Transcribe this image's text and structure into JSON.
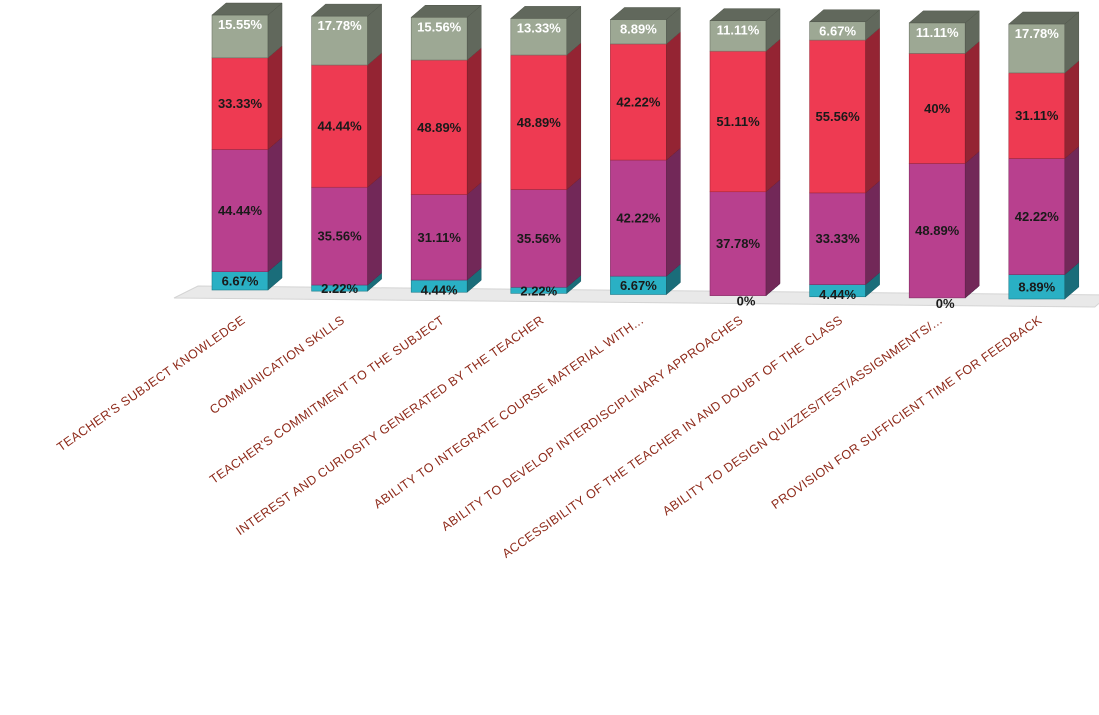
{
  "chart_data": {
    "type": "bar",
    "stacked": true,
    "style": "3d-percent-stacked-column",
    "title": "",
    "xlabel": "",
    "ylabel": "",
    "ylim": [
      0,
      100
    ],
    "grid": false,
    "legend": "none",
    "categories": [
      "TEACHER'S SUBJECT KNOWLEDGE",
      "COMMUNICATION SKILLS",
      "TEACHER'S COMMITMENT TO THE SUBJECT",
      "INTEREST AND CURIOSITY GENERATED BY THE TEACHER",
      "ABILITY TO INTEGRATE COURSE MATERIAL WITH...",
      "ABILITY TO DEVELOP INTERDISCIPLINARY APPROACHES",
      "ACCESSIBILITY OF THE TEACHER IN AND DOUBT OF THE CLASS",
      "ABILITY TO DESIGN QUIZZES/TEST/ASSIGNMENTS/...",
      "PROVISION FOR SUFFICIENT TIME FOR FEEDBACK"
    ],
    "series": [
      {
        "color": "#2ab0c4",
        "values": [
          6.67,
          2.22,
          4.44,
          2.22,
          6.67,
          0,
          4.44,
          0,
          8.89
        ],
        "labels": [
          "6.67%",
          "2.22%",
          "4.44%",
          "2.22%",
          "6.67%",
          "0%",
          "4.44%",
          "0%",
          "8.89%"
        ]
      },
      {
        "color": "#b8408e",
        "values": [
          44.44,
          35.56,
          31.11,
          35.56,
          42.22,
          37.78,
          33.33,
          48.89,
          42.22
        ],
        "labels": [
          "44.44%",
          "35.56%",
          "31.11%",
          "35.56%",
          "42.22%",
          "37.78%",
          "33.33%",
          "48.89%",
          "42.22%"
        ]
      },
      {
        "color": "#ee3a52",
        "values": [
          33.33,
          44.44,
          48.89,
          48.89,
          42.22,
          51.11,
          55.56,
          40,
          31.11
        ],
        "labels": [
          "33.33%",
          "44.44%",
          "48.89%",
          "48.89%",
          "42.22%",
          "51.11%",
          "55.56%",
          "40%",
          "31.11%"
        ]
      },
      {
        "color": "#9da894",
        "values": [
          15.55,
          17.78,
          15.56,
          13.33,
          8.89,
          11.11,
          6.67,
          11.11,
          17.78
        ],
        "labels": [
          "15.55%",
          "17.78%",
          "15.56%",
          "13.33%",
          "8.89%",
          "11.11%",
          "6.67%",
          "11.11%",
          "17.78%"
        ]
      }
    ],
    "label_colors": [
      "#1a1a1a",
      "#1a1a1a",
      "#1a1a1a",
      "#ffffff"
    ],
    "category_label_color": "#8e2a1a",
    "floor_color": "#e9e9e9"
  }
}
